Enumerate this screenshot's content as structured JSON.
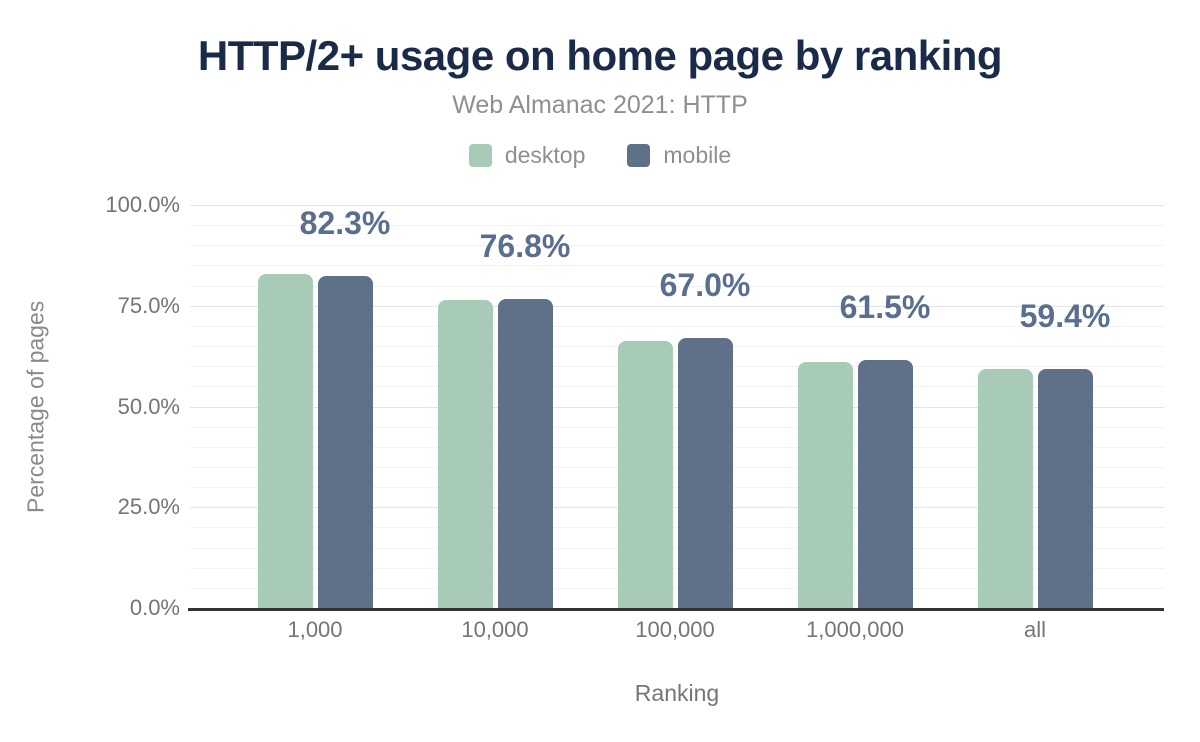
{
  "header": {
    "title": "HTTP/2+ usage on home page by ranking",
    "subtitle": "Web Almanac 2021: HTTP"
  },
  "legend": {
    "items": [
      {
        "label": "desktop",
        "color": "#a8cbb8"
      },
      {
        "label": "mobile",
        "color": "#5f7188"
      }
    ]
  },
  "chart_data": {
    "type": "bar",
    "title": "HTTP/2+ usage on home page by ranking",
    "subtitle": "Web Almanac 2021: HTTP",
    "categories": [
      "1,000",
      "10,000",
      "100,000",
      "1,000,000",
      "all"
    ],
    "series": [
      {
        "name": "desktop",
        "color": "#a8cbb8",
        "values": [
          82.9,
          76.4,
          66.3,
          61.1,
          59.2
        ]
      },
      {
        "name": "mobile",
        "color": "#5f7188",
        "values": [
          82.3,
          76.8,
          67.0,
          61.5,
          59.4
        ]
      }
    ],
    "data_labels": [
      "82.3%",
      "76.8%",
      "67.0%",
      "61.5%",
      "59.4%"
    ],
    "data_labels_series": "mobile",
    "xlabel": "Ranking",
    "ylabel": "Percentage of pages",
    "ylim": [
      0,
      100
    ],
    "ytick_values": [
      0,
      25,
      50,
      75,
      100
    ],
    "ytick_labels": [
      "0.0%",
      "25.0%",
      "50.0%",
      "75.0%",
      "100.0%"
    ],
    "grid": {
      "minor_step": 5,
      "major_step": 25,
      "legend_position": "top"
    }
  },
  "colors": {
    "title": "#1a2b49",
    "subtitle": "#8f8f8f",
    "data_label": "#5a6e8f",
    "tick_label": "#757575",
    "axis_line": "#333333",
    "gridline_major": "#e4e4e4",
    "gridline_minor": "#f3f3f3",
    "background": "#ffffff"
  }
}
